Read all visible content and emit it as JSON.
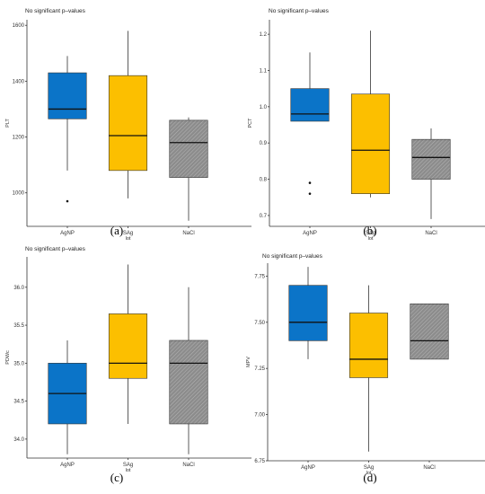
{
  "colors": {
    "agnp": "#0b74c8",
    "sag": "#fcbf00",
    "nacl": "#8c8c8c",
    "nacl_hatch": "#b5b5b5",
    "median": "#111111",
    "whisker": "#333333",
    "axis": "#333333"
  },
  "chart_data": [
    {
      "type": "box",
      "panel_label": "(a)",
      "title": "No significant p–values",
      "xlabel": "lot",
      "ylabel": "PLT",
      "ylim": [
        880,
        1620
      ],
      "yticks": [
        1000,
        1200,
        1400,
        1600
      ],
      "ytick_labels": [
        "1000",
        "1200",
        "1400",
        "1600"
      ],
      "categories": [
        "AgNP",
        "SAg",
        "NaCl"
      ],
      "boxes": [
        {
          "category": "AgNP",
          "whisker_low": 1080,
          "q1": 1265,
          "median": 1300,
          "q3": 1430,
          "whisker_high": 1490,
          "outliers": [
            970
          ]
        },
        {
          "category": "SAg",
          "whisker_low": 980,
          "q1": 1080,
          "median": 1205,
          "q3": 1420,
          "whisker_high": 1580,
          "outliers": []
        },
        {
          "category": "NaCl",
          "whisker_low": 900,
          "q1": 1055,
          "median": 1180,
          "q3": 1260,
          "whisker_high": 1270,
          "outliers": []
        }
      ]
    },
    {
      "type": "box",
      "panel_label": "(b)",
      "title": "No significant p–values",
      "xlabel": "lot",
      "ylabel": "PCT",
      "ylim": [
        0.67,
        1.24
      ],
      "yticks": [
        0.7,
        0.8,
        0.9,
        1.0,
        1.1,
        1.2
      ],
      "ytick_labels": [
        "0.7",
        "0.8",
        "0.9",
        "1.0",
        "1.1",
        "1.2"
      ],
      "categories": [
        "AgNP",
        "SAg",
        "NaCl"
      ],
      "boxes": [
        {
          "category": "AgNP",
          "whisker_low": 0.96,
          "q1": 0.96,
          "median": 0.98,
          "q3": 1.05,
          "whisker_high": 1.15,
          "outliers": [
            0.79,
            0.76
          ]
        },
        {
          "category": "SAg",
          "whisker_low": 0.75,
          "q1": 0.76,
          "median": 0.88,
          "q3": 1.035,
          "whisker_high": 1.21,
          "outliers": []
        },
        {
          "category": "NaCl",
          "whisker_low": 0.69,
          "q1": 0.8,
          "median": 0.86,
          "q3": 0.91,
          "whisker_high": 0.94,
          "outliers": []
        }
      ]
    },
    {
      "type": "box",
      "panel_label": "(c)",
      "title": "No significant p–values",
      "xlabel": "lot",
      "ylabel": "PDWc",
      "ylim": [
        33.75,
        36.4
      ],
      "yticks": [
        34.0,
        34.5,
        35.0,
        35.5,
        36.0
      ],
      "ytick_labels": [
        "34.0",
        "34.5",
        "35.0",
        "35.5",
        "36.0"
      ],
      "categories": [
        "AgNP",
        "SAg",
        "NaCl"
      ],
      "boxes": [
        {
          "category": "AgNP",
          "whisker_low": 33.8,
          "q1": 34.2,
          "median": 34.6,
          "q3": 35.0,
          "whisker_high": 35.3,
          "outliers": []
        },
        {
          "category": "SAg",
          "whisker_low": 34.2,
          "q1": 34.8,
          "median": 35.0,
          "q3": 35.65,
          "whisker_high": 36.3,
          "outliers": []
        },
        {
          "category": "NaCl",
          "whisker_low": 33.8,
          "q1": 34.2,
          "median": 35.0,
          "q3": 35.3,
          "whisker_high": 36.0,
          "outliers": []
        }
      ]
    },
    {
      "type": "box",
      "panel_label": "(d)",
      "title": "No significant p–values",
      "xlabel": "lot",
      "ylabel": "MPV",
      "ylim": [
        6.75,
        7.82
      ],
      "yticks": [
        6.75,
        7.0,
        7.25,
        7.5,
        7.75
      ],
      "ytick_labels": [
        "6.75",
        "7.00",
        "7.25",
        "7.50",
        "7.75"
      ],
      "categories": [
        "AgNP",
        "SAg",
        "NaCl"
      ],
      "boxes": [
        {
          "category": "AgNP",
          "whisker_low": 7.3,
          "q1": 7.4,
          "median": 7.5,
          "q3": 7.7,
          "whisker_high": 7.8,
          "outliers": []
        },
        {
          "category": "SAg",
          "whisker_low": 6.8,
          "q1": 7.2,
          "median": 7.3,
          "q3": 7.55,
          "whisker_high": 7.7,
          "outliers": []
        },
        {
          "category": "NaCl",
          "whisker_low": 7.3,
          "q1": 7.3,
          "median": 7.4,
          "q3": 7.6,
          "whisker_high": 7.6,
          "outliers": []
        }
      ]
    }
  ]
}
